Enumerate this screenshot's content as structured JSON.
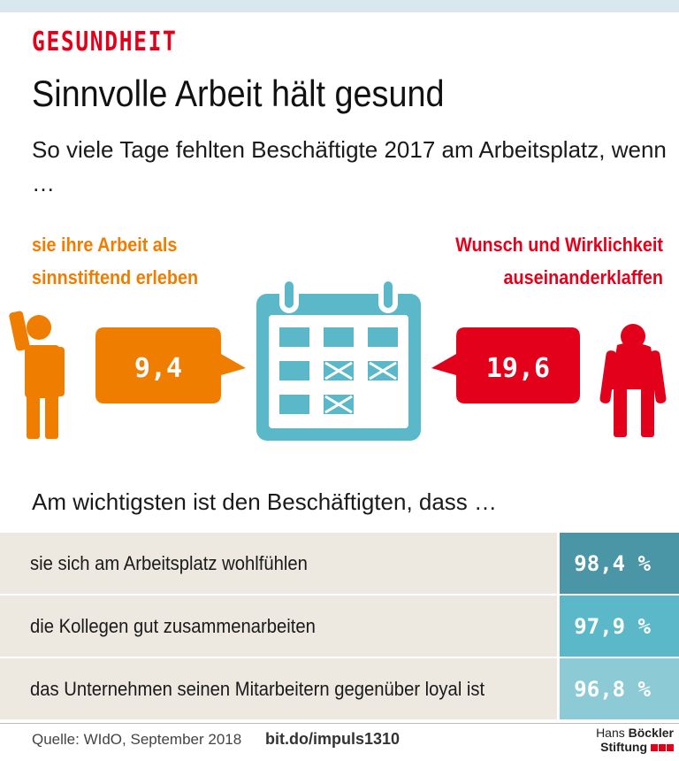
{
  "header": {
    "kicker": "GESUNDHEIT",
    "headline": "Sinnvolle Arbeit hält gesund",
    "subtitle": "So viele Tage fehlten Beschäftigte 2017 am Arbeitsplatz, wenn …"
  },
  "comparison": {
    "left": {
      "label": "sie ihre Arbeit als sinnstiftend erleben",
      "value": "9,4",
      "color": "#ef7d00"
    },
    "right": {
      "label": "Wunsch und Wirklichkeit auseinanderklaffen",
      "value": "19,6",
      "color": "#e3001b"
    },
    "calendar_color": "#5bb8c9"
  },
  "ranking": {
    "title": "Am wichtigsten ist den Beschäftigten, dass …",
    "rows": [
      {
        "text": "sie sich am Arbeitsplatz wohlfühlen",
        "value": "98,4 %",
        "color": "#4a96a6"
      },
      {
        "text": "die Kollegen gut zusammenarbeiten",
        "value": "97,9 %",
        "color": "#5bb8c9"
      },
      {
        "text": "das Unternehmen seinen Mitarbeitern gegenüber loyal ist",
        "value": "96,8 %",
        "color": "#8ccbd6"
      }
    ]
  },
  "footer": {
    "source": "Quelle: WIdO, September 2018",
    "link": "bit.do/impuls1310",
    "logo_line1_a": "Hans",
    "logo_line1_b": "Böckler",
    "logo_line2": "Stiftung"
  }
}
